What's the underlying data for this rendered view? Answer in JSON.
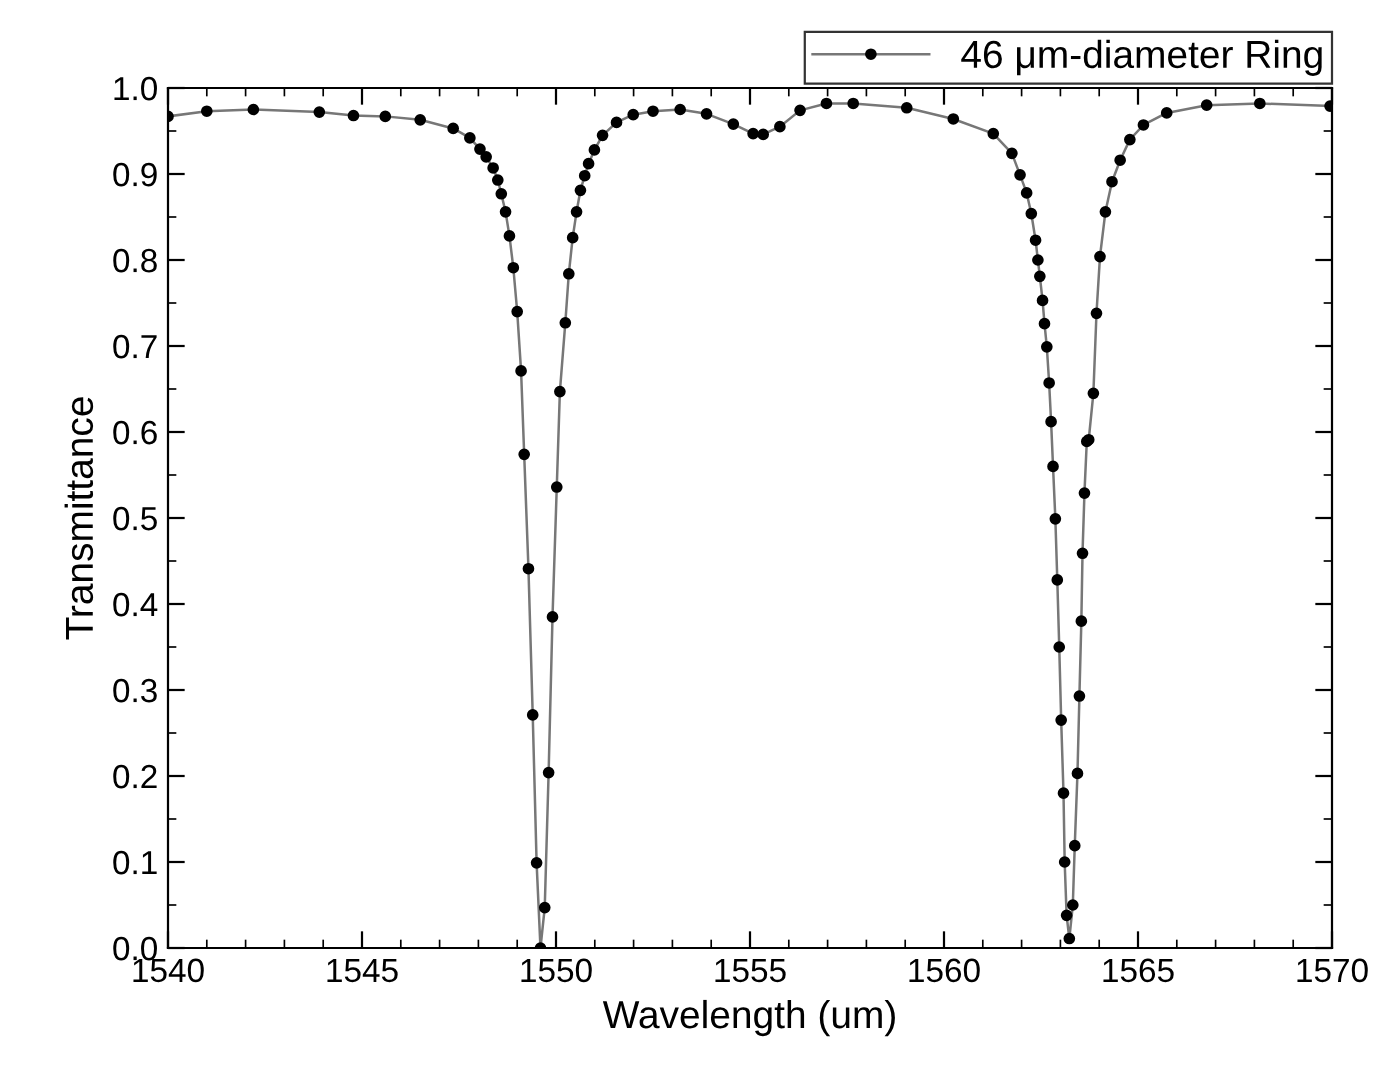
{
  "chart_data": {
    "type": "line",
    "xlabel": "Wavelength (um)",
    "ylabel": "Transmittance",
    "xlim": [
      1540,
      1570
    ],
    "xticks": [
      1540,
      1545,
      1550,
      1555,
      1560,
      1565,
      1570
    ],
    "ylim": [
      0,
      1
    ],
    "yticks": [
      {
        "value": 0,
        "label": "0.0"
      },
      0.1,
      0.2,
      0.3,
      0.4,
      0.5,
      0.6,
      0.7,
      0.8,
      0.9,
      {
        "value": 1,
        "label": "1.0"
      }
    ],
    "grid": false,
    "legend": "top right",
    "marker": "circle",
    "line_style": "solid",
    "series": [
      {
        "name": "46 μm-diameter Ring",
        "color": "#000000",
        "x": [
          1540.0,
          1541.0,
          1542.2,
          1543.9,
          1544.78,
          1545.6,
          1546.5,
          1547.35,
          1547.78,
          1548.04,
          1548.2,
          1548.38,
          1548.5,
          1548.59,
          1548.7,
          1548.8,
          1548.9,
          1549.0,
          1549.1,
          1549.18,
          1549.29,
          1549.4,
          1549.5,
          1549.6,
          1549.71,
          1549.81,
          1549.91,
          1550.02,
          1550.1,
          1550.24,
          1550.33,
          1550.43,
          1550.53,
          1550.63,
          1550.74,
          1550.84,
          1550.99,
          1551.2,
          1551.56,
          1551.99,
          1552.5,
          1553.2,
          1553.88,
          1554.57,
          1555.08,
          1555.34,
          1555.77,
          1556.29,
          1556.97,
          1557.66,
          1559.04,
          1560.24,
          1561.27,
          1561.75,
          1561.96,
          1562.13,
          1562.25,
          1562.36,
          1562.42,
          1562.47,
          1562.54,
          1562.59,
          1562.65,
          1562.71,
          1562.76,
          1562.81,
          1562.87,
          1562.92,
          1562.97,
          1563.02,
          1563.08,
          1563.11,
          1563.16,
          1563.23,
          1563.32,
          1563.37,
          1563.44,
          1563.49,
          1563.54,
          1563.57,
          1563.62,
          1563.68,
          1563.73,
          1563.85,
          1563.93,
          1564.02,
          1564.16,
          1564.33,
          1564.54,
          1564.79,
          1565.14,
          1565.74,
          1566.77,
          1568.14,
          1569.95
        ],
        "values": [
          0.967,
          0.973,
          0.975,
          0.972,
          0.968,
          0.967,
          0.963,
          0.953,
          0.942,
          0.929,
          0.92,
          0.907,
          0.893,
          0.877,
          0.856,
          0.828,
          0.791,
          0.74,
          0.671,
          0.574,
          0.441,
          0.271,
          0.099,
          0.0,
          0.047,
          0.204,
          0.385,
          0.536,
          0.647,
          0.727,
          0.784,
          0.826,
          0.856,
          0.881,
          0.898,
          0.912,
          0.928,
          0.945,
          0.96,
          0.969,
          0.973,
          0.975,
          0.97,
          0.958,
          0.947,
          0.946,
          0.955,
          0.974,
          0.982,
          0.982,
          0.977,
          0.964,
          0.947,
          0.924,
          0.899,
          0.878,
          0.854,
          0.823,
          0.8,
          0.781,
          0.753,
          0.726,
          0.699,
          0.657,
          0.612,
          0.56,
          0.499,
          0.428,
          0.35,
          0.265,
          0.18,
          0.1,
          0.038,
          0.011,
          0.05,
          0.119,
          0.203,
          0.293,
          0.38,
          0.459,
          0.529,
          0.589,
          0.591,
          0.645,
          0.738,
          0.804,
          0.856,
          0.891,
          0.916,
          0.94,
          0.957,
          0.971,
          0.98,
          0.982,
          0.979
        ]
      }
    ]
  }
}
